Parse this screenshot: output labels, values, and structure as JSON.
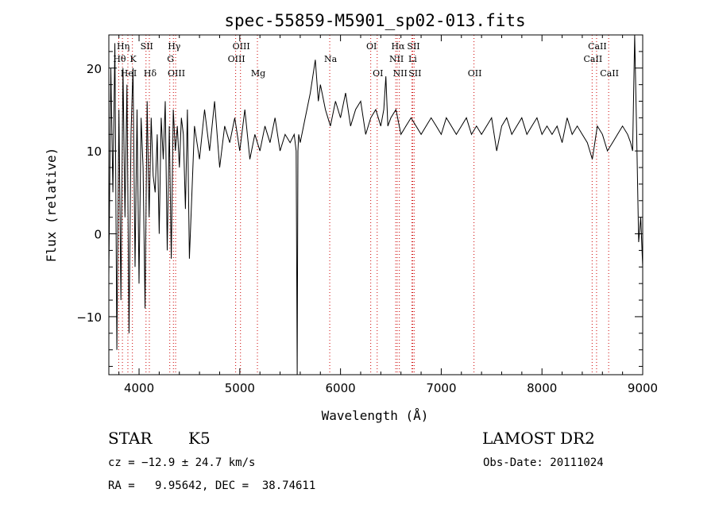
{
  "chart_data": {
    "type": "line",
    "title": "spec-55859-M5901_sp02-013.fits",
    "xlabel": "Wavelength (Å)",
    "ylabel": "Flux (relative)",
    "xlim": [
      3700,
      9000
    ],
    "ylim": [
      -17,
      24
    ],
    "xticks": [
      4000,
      5000,
      6000,
      7000,
      8000,
      9000
    ],
    "xtick_labels": [
      "4000",
      "5000",
      "6000",
      "7000",
      "8000",
      "9000"
    ],
    "yticks": [
      -10,
      0,
      10,
      20
    ],
    "ytick_labels": [
      "−10",
      "0",
      "10",
      "20"
    ],
    "grid": false,
    "line_color": "#000000",
    "marker_color": "#cc0000",
    "series": [
      {
        "x": [
          3700,
          3720,
          3740,
          3760,
          3780,
          3800,
          3820,
          3840,
          3860,
          3880,
          3900,
          3920,
          3940,
          3960,
          3980,
          4000,
          4020,
          4040,
          4060,
          4080,
          4100,
          4120,
          4140,
          4160,
          4180,
          4200,
          4220,
          4240,
          4260,
          4280,
          4300,
          4320,
          4340,
          4360,
          4380,
          4400,
          4420,
          4440,
          4460,
          4480,
          4500,
          4550,
          4600,
          4650,
          4700,
          4750,
          4800,
          4850,
          4900,
          4950,
          5000,
          5050,
          5100,
          5150,
          5200,
          5250,
          5300,
          5350,
          5400,
          5450,
          5500,
          5540,
          5560,
          5570,
          5577,
          5585,
          5600,
          5650,
          5700,
          5750,
          5780,
          5800,
          5850,
          5900,
          5950,
          6000,
          6050,
          6100,
          6150,
          6200,
          6250,
          6300,
          6350,
          6400,
          6430,
          6450,
          6470,
          6500,
          6550,
          6600,
          6650,
          6700,
          6750,
          6800,
          6850,
          6900,
          6950,
          7000,
          7050,
          7100,
          7150,
          7200,
          7250,
          7300,
          7350,
          7400,
          7450,
          7500,
          7550,
          7600,
          7650,
          7700,
          7750,
          7800,
          7850,
          7900,
          7950,
          8000,
          8050,
          8100,
          8150,
          8200,
          8250,
          8300,
          8350,
          8400,
          8450,
          8500,
          8550,
          8600,
          8650,
          8700,
          8750,
          8800,
          8850,
          8880,
          8900,
          8920,
          8940,
          8960,
          8980,
          9000
        ],
        "y": [
          -5,
          20,
          5,
          23,
          -14,
          15,
          -8,
          20,
          2,
          18,
          -12,
          12,
          20,
          -4,
          15,
          -6,
          14,
          8,
          -9,
          16,
          2,
          14,
          7,
          5,
          12,
          0,
          14,
          9,
          16,
          -2,
          13,
          -3,
          15,
          10,
          13,
          8,
          14,
          12,
          3,
          15,
          -3,
          13,
          9,
          15,
          10,
          16,
          8,
          13,
          11,
          14,
          10,
          15,
          9,
          12,
          10,
          13,
          11,
          14,
          10,
          12,
          11,
          12,
          10,
          -17,
          10,
          12,
          11,
          14,
          17,
          21,
          16,
          18,
          15,
          13,
          16,
          14,
          17,
          13,
          15,
          16,
          12,
          14,
          15,
          13,
          15,
          19,
          13,
          14,
          15,
          12,
          13,
          14,
          13,
          12,
          13,
          14,
          13,
          12,
          14,
          13,
          12,
          13,
          14,
          12,
          13,
          12,
          13,
          14,
          10,
          13,
          14,
          12,
          13,
          14,
          12,
          13,
          14,
          12,
          13,
          12,
          13,
          11,
          14,
          12,
          13,
          12,
          11,
          9,
          13,
          12,
          10,
          11,
          12,
          13,
          12,
          11,
          10,
          24,
          12,
          -1,
          2,
          -4
        ]
      }
    ],
    "line_markers": [
      {
        "label": "Hη",
        "x": 3835,
        "row": 1
      },
      {
        "label": "Hθ",
        "x": 3798,
        "row": 2
      },
      {
        "label": "HeI",
        "x": 3889,
        "row": 3
      },
      {
        "label": "K",
        "x": 3934,
        "row": 2
      },
      {
        "label": "SII",
        "x": 4069,
        "row": 1
      },
      {
        "label": "Hδ",
        "x": 4102,
        "row": 3
      },
      {
        "label": "Hγ",
        "x": 4341,
        "row": 1
      },
      {
        "label": "G",
        "x": 4305,
        "row": 2
      },
      {
        "label": "OIII",
        "x": 4363,
        "row": 3
      },
      {
        "label": "OIII",
        "x": 5007,
        "row": 1
      },
      {
        "label": "OIII",
        "x": 4959,
        "row": 2
      },
      {
        "label": "Mg",
        "x": 5175,
        "row": 3
      },
      {
        "label": "Na",
        "x": 5893,
        "row": 2
      },
      {
        "label": "OI",
        "x": 6300,
        "row": 1
      },
      {
        "label": "OI",
        "x": 6364,
        "row": 3
      },
      {
        "label": "Hα",
        "x": 6563,
        "row": 1
      },
      {
        "label": "NII",
        "x": 6548,
        "row": 2
      },
      {
        "label": "NII",
        "x": 6584,
        "row": 3
      },
      {
        "label": "SII",
        "x": 6717,
        "row": 1
      },
      {
        "label": "Li",
        "x": 6708,
        "row": 2
      },
      {
        "label": "SII",
        "x": 6731,
        "row": 3
      },
      {
        "label": "OII",
        "x": 7325,
        "row": 3
      },
      {
        "label": "CaII",
        "x": 8542,
        "row": 1
      },
      {
        "label": "CaII",
        "x": 8498,
        "row": 2
      },
      {
        "label": "CaII",
        "x": 8662,
        "row": 3
      }
    ]
  },
  "info": {
    "class": "STAR",
    "subclass": "K5",
    "survey": "LAMOST DR2",
    "cz": "cz = −12.9 ± 24.7 km/s",
    "obs_date": "Obs-Date: 20111024",
    "coords": "RA =   9.95642, DEC =  38.74611"
  }
}
